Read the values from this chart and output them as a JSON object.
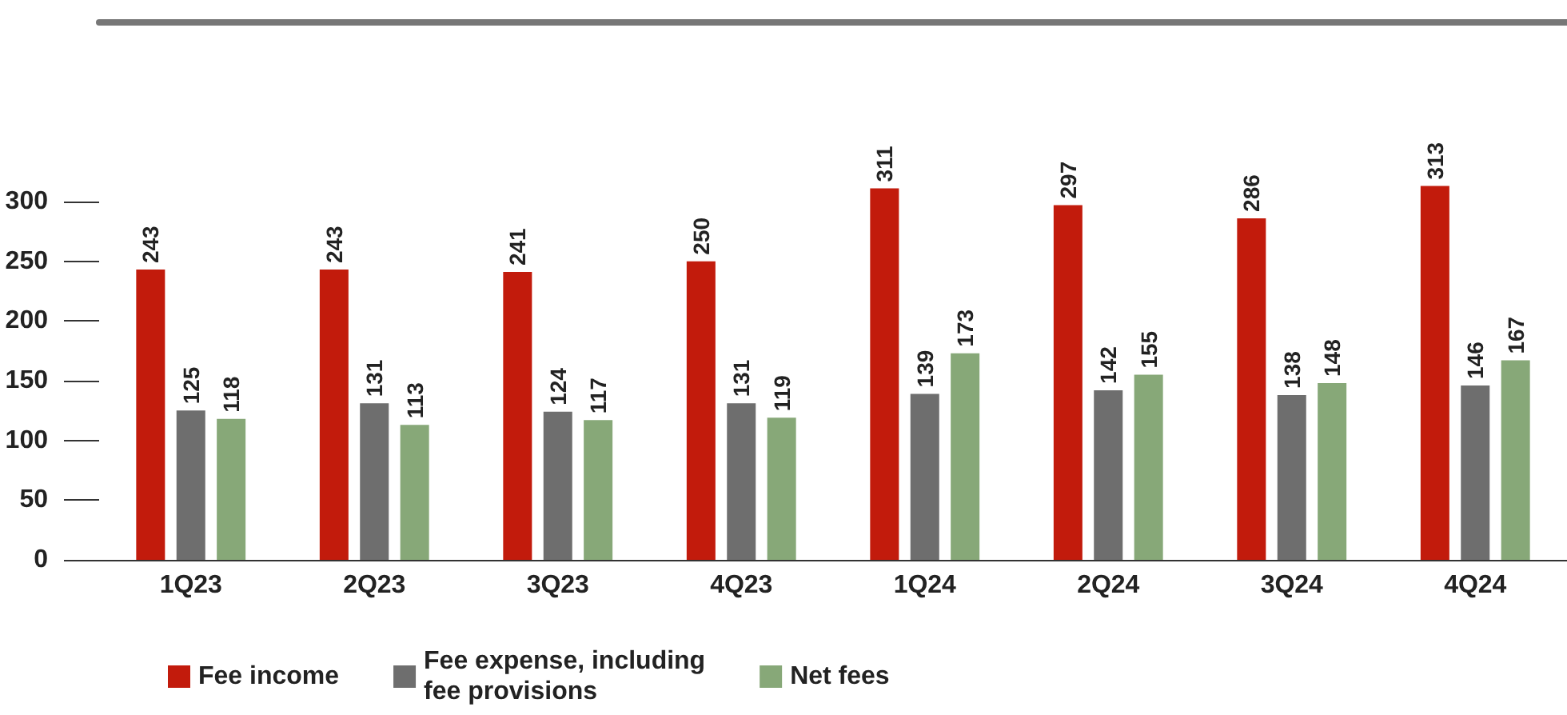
{
  "chart_data": {
    "type": "bar",
    "categories": [
      "1Q23",
      "2Q23",
      "3Q23",
      "4Q23",
      "1Q24",
      "2Q24",
      "3Q24",
      "4Q24"
    ],
    "series": [
      {
        "name": "Fee income",
        "color": "#c21b0c",
        "values": [
          243,
          243,
          241,
          250,
          311,
          297,
          286,
          313
        ]
      },
      {
        "name": "Fee expense, including\nfee provisions",
        "color": "#6e6e6e",
        "values": [
          125,
          131,
          124,
          131,
          139,
          142,
          138,
          146
        ]
      },
      {
        "name": "Net fees",
        "color": "#87a878",
        "values": [
          118,
          113,
          117,
          119,
          173,
          155,
          148,
          167
        ]
      }
    ],
    "ylim": [
      0,
      450
    ],
    "yticks": [
      0,
      50,
      100,
      150,
      200,
      250,
      300
    ],
    "grid": false,
    "legend": "bottom left",
    "data_labels": true
  }
}
